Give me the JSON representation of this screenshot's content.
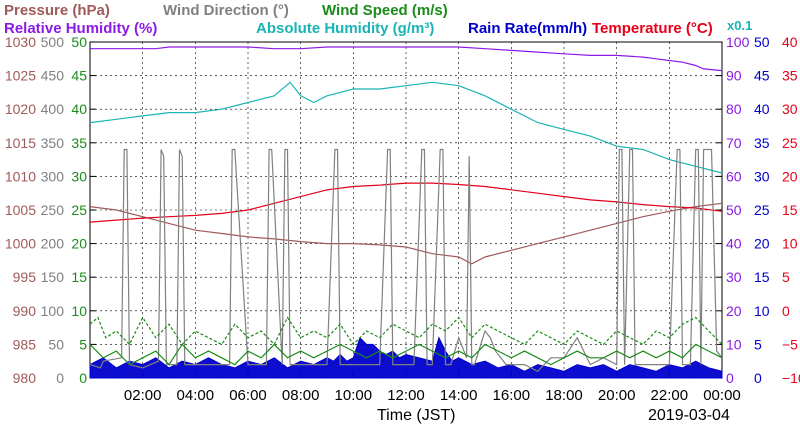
{
  "chart_data": {
    "type": "line",
    "date_label": "2019-03-04",
    "xlabel": "Time (JST)",
    "x_range_hours": [
      0,
      24
    ],
    "x_ticks": [
      "02:00",
      "04:00",
      "06:00",
      "08:00",
      "10:00",
      "12:00",
      "14:00",
      "16:00",
      "18:00",
      "20:00",
      "22:00",
      "00:00"
    ],
    "grid": true,
    "legend": {
      "row1": [
        {
          "label": "Pressure (hPa)",
          "color": "#a05a5a"
        },
        {
          "label": "Wind Direction (°)",
          "color": "#808080"
        },
        {
          "label": "Wind Speed (m/s)",
          "color": "#1a8c1a"
        }
      ],
      "row2": [
        {
          "label": "Relative Humidity (%)",
          "color": "#8c1ae6"
        },
        {
          "label": "Absolute Humidity (g/m³)",
          "color": "#1ab4b4"
        },
        {
          "label": "Rain Rate(mm/h)",
          "color": "#0000cc"
        },
        {
          "label": "Temperature (°C)",
          "color": "#e6001a"
        }
      ],
      "note": {
        "label": "x0.1",
        "color": "#1ab4b4"
      }
    },
    "axes": {
      "pressure": {
        "color": "#a05a5a",
        "min": 980,
        "max": 1030,
        "ticks": [
          "1030",
          "1025",
          "1020",
          "1015",
          "1010",
          "1005",
          "1000",
          "995",
          "990",
          "985",
          "980"
        ]
      },
      "wind_direction": {
        "color": "#808080",
        "min": 0,
        "max": 500,
        "ticks": [
          "500",
          "450",
          "400",
          "350",
          "300",
          "250",
          "200",
          "150",
          "100",
          "50",
          "0"
        ]
      },
      "wind_speed": {
        "color": "#1a8c1a",
        "min": 0,
        "max": 50,
        "ticks": [
          "50",
          "45",
          "40",
          "35",
          "30",
          "25",
          "20",
          "15",
          "10",
          "5",
          "0"
        ]
      },
      "humidity": {
        "color": "#8c1ae6",
        "min": 0,
        "max": 100,
        "ticks": [
          "100",
          "90",
          "80",
          "70",
          "60",
          "50",
          "40",
          "30",
          "20",
          "10",
          "0"
        ]
      },
      "rain_rate": {
        "color": "#0000cc",
        "min": 0,
        "max": 50,
        "ticks": [
          "50",
          "45",
          "40",
          "35",
          "30",
          "25",
          "20",
          "15",
          "10",
          "5",
          "0"
        ]
      },
      "temperature": {
        "color": "#e6001a",
        "min": -10,
        "max": 40,
        "ticks": [
          "40",
          "35",
          "30",
          "25",
          "20",
          "15",
          "10",
          "5",
          "0",
          "−5",
          "−10"
        ]
      }
    },
    "series": [
      {
        "name": "Relative Humidity (%)",
        "color": "#8c1ae6",
        "axis": "humidity",
        "x": [
          0,
          2,
          2.5,
          3,
          4,
          5,
          6,
          7,
          7.5,
          8,
          9,
          10,
          11,
          12,
          13,
          14,
          15,
          16,
          17,
          18,
          19,
          20,
          21,
          21.5,
          22,
          22.5,
          23,
          23.3,
          24
        ],
        "y": [
          98,
          98,
          98,
          98.5,
          98.5,
          98.5,
          98.5,
          98,
          98,
          98,
          98.5,
          98.5,
          98.5,
          98.5,
          98.5,
          98.5,
          98,
          97.5,
          97,
          96.5,
          96,
          96,
          95.5,
          95,
          94.5,
          94,
          93,
          92,
          91.5
        ]
      },
      {
        "name": "Absolute Humidity (g/m³)",
        "color": "#1ab4b4",
        "axis": "wind_speed",
        "x": [
          0,
          1,
          2,
          3,
          4,
          5,
          6,
          7,
          7.6,
          8,
          8.5,
          9,
          10,
          11,
          12,
          13,
          14,
          15,
          16,
          17,
          18,
          19,
          20,
          21,
          22,
          23,
          24
        ],
        "y": [
          38,
          38.5,
          39,
          39.5,
          39.5,
          40,
          41,
          42,
          44,
          42,
          41,
          42,
          43,
          43,
          43.5,
          44,
          43.5,
          42,
          40,
          38,
          37,
          36,
          34.5,
          34,
          32.5,
          31.5,
          30.5
        ]
      },
      {
        "name": "Pressure (hPa)",
        "color": "#a05a5a",
        "axis": "pressure",
        "x": [
          0,
          1,
          2,
          3,
          4,
          5,
          6,
          7,
          8,
          9,
          10,
          11,
          12,
          13,
          14,
          14.5,
          15,
          16,
          17,
          18,
          19,
          20,
          21,
          22,
          23,
          24
        ],
        "y": [
          1005.5,
          1005,
          1004,
          1003,
          1002,
          1001.5,
          1001,
          1000.7,
          1000.3,
          1000,
          1000,
          999.8,
          999.5,
          998.5,
          998,
          997,
          998,
          999,
          1000,
          1001,
          1002,
          1003,
          1004,
          1004.8,
          1005.5,
          1006
        ]
      },
      {
        "name": "Temperature (°C)",
        "color": "#e6001a",
        "axis": "temperature",
        "x": [
          0,
          1,
          2,
          3,
          4,
          5,
          6,
          7,
          8,
          9,
          10,
          11,
          12,
          13,
          14,
          15,
          16,
          17,
          18,
          19,
          20,
          21,
          22,
          23,
          24
        ],
        "y": [
          13.2,
          13.5,
          13.8,
          14,
          14.2,
          14.5,
          15,
          16,
          17,
          18,
          18.5,
          18.7,
          19,
          19,
          18.8,
          18.5,
          18,
          17.5,
          17,
          16.5,
          16.2,
          15.8,
          15.5,
          15.3,
          14.8
        ]
      },
      {
        "name": "Wind Direction (°)",
        "color": "#808080",
        "axis": "wind_direction",
        "x": [
          0,
          0.4,
          0.5,
          1.2,
          1.3,
          1.4,
          1.5,
          2,
          2.6,
          2.7,
          2.8,
          2.9,
          3.3,
          3.4,
          3.5,
          3.6,
          4.5,
          5.3,
          5.4,
          5.5,
          6,
          6.2,
          6.7,
          6.8,
          6.9,
          7.3,
          7.4,
          7.5,
          7.6,
          8,
          8.5,
          9,
          9.3,
          9.4,
          9.5,
          9.8,
          10.2,
          10.5,
          11,
          11.3,
          11.4,
          11.5,
          11.7,
          12,
          12.3,
          12.6,
          12.7,
          12.8,
          13,
          13.3,
          13.4,
          13.5,
          13.7,
          14,
          14.3,
          14.4,
          14.5,
          14.6,
          15,
          15.2,
          15.4,
          15.6,
          15.8,
          16.5,
          17,
          17.5,
          18,
          18.5,
          19,
          19.5,
          20,
          20.1,
          20.2,
          20.3,
          20.5,
          20.6,
          20.7,
          21,
          21.5,
          22,
          22.3,
          22.4,
          22.5,
          22.8,
          23,
          23.1,
          23.2,
          23.3,
          23.6,
          23.8,
          24
        ],
        "y": [
          20,
          15,
          25,
          30,
          340,
          340,
          20,
          15,
          25,
          340,
          330,
          20,
          20,
          340,
          330,
          20,
          20,
          20,
          340,
          340,
          20,
          20,
          20,
          340,
          340,
          20,
          340,
          340,
          20,
          20,
          20,
          20,
          340,
          340,
          20,
          20,
          20,
          20,
          20,
          340,
          340,
          20,
          20,
          20,
          20,
          340,
          340,
          20,
          20,
          340,
          340,
          20,
          20,
          60,
          30,
          330,
          20,
          20,
          70,
          60,
          40,
          30,
          20,
          20,
          10,
          30,
          30,
          60,
          20,
          30,
          20,
          340,
          340,
          20,
          340,
          340,
          20,
          20,
          20,
          20,
          340,
          340,
          20,
          20,
          340,
          340,
          20,
          340,
          340,
          40,
          30
        ]
      },
      {
        "name": "Wind Speed (m/s)",
        "color": "#1a8c1a",
        "axis": "wind_speed",
        "x": [
          0,
          0.5,
          1,
          1.5,
          2,
          2.5,
          3,
          3.5,
          4,
          4.5,
          5,
          5.5,
          6,
          6.5,
          7,
          7.5,
          8,
          8.5,
          9,
          9.5,
          10,
          10.5,
          11,
          11.5,
          12,
          12.5,
          13,
          13.5,
          14,
          14.5,
          15,
          15.5,
          16,
          16.5,
          17,
          17.5,
          18,
          18.5,
          19,
          19.5,
          20,
          20.5,
          21,
          21.5,
          22,
          22.5,
          23,
          23.5,
          24
        ],
        "y": [
          5,
          3,
          4,
          2,
          3,
          4,
          2,
          5,
          3,
          4,
          3,
          2,
          4,
          3,
          5,
          3,
          4,
          3,
          4,
          5,
          4,
          3,
          4,
          3,
          4,
          5,
          4,
          3,
          4,
          3,
          5,
          4,
          3,
          4,
          3,
          2,
          3,
          4,
          3,
          3,
          4,
          3,
          4,
          3,
          4,
          3,
          5,
          4,
          3
        ]
      },
      {
        "name": "Wind Speed (m/s)",
        "color": "#1a8c1a",
        "axis": "wind_speed",
        "dashed": true,
        "x": [
          0,
          0.3,
          0.6,
          1,
          1.5,
          2,
          2.5,
          3,
          3.5,
          4,
          4.5,
          5,
          5.5,
          6,
          6.5,
          7,
          7.5,
          8,
          8.5,
          9,
          9.5,
          10,
          10.5,
          11,
          11.5,
          12,
          12.5,
          13,
          13.5,
          14,
          14.5,
          15,
          15.5,
          16,
          16.5,
          17,
          17.5,
          18,
          18.5,
          19,
          19.5,
          20,
          20.5,
          21,
          21.5,
          22,
          22.5,
          23,
          23.5,
          24
        ],
        "y": [
          8,
          9,
          6,
          7,
          5,
          9,
          6,
          8,
          5,
          7,
          6,
          5,
          8,
          6,
          7,
          5,
          9,
          6,
          7,
          6,
          8,
          5,
          7,
          6,
          8,
          7,
          6,
          8,
          7,
          9,
          6,
          8,
          7,
          6,
          5,
          7,
          6,
          5,
          7,
          6,
          5,
          7,
          6,
          5,
          7,
          6,
          8,
          9,
          7,
          5
        ]
      }
    ],
    "rain_rate": {
      "name": "Rain Rate(mm/h)",
      "color": "#0000cc",
      "axis": "rain_rate",
      "x": [
        0,
        0.5,
        1,
        1.5,
        2,
        2.5,
        3,
        3.5,
        4,
        4.5,
        5,
        5.5,
        6,
        6.5,
        7,
        7.5,
        8,
        8.5,
        9,
        9.25,
        9.5,
        9.75,
        10,
        10.25,
        10.5,
        10.75,
        11,
        11.25,
        11.5,
        11.75,
        12,
        12.5,
        13,
        13.25,
        13.5,
        13.75,
        14,
        14.5,
        15,
        15.5,
        16,
        16.5,
        17,
        17.5,
        18,
        18.5,
        19,
        19.5,
        20,
        20.5,
        21,
        21.5,
        22,
        22.5,
        23,
        23.5,
        24
      ],
      "y": [
        2,
        3,
        1.5,
        2.5,
        2,
        3,
        1.5,
        2.5,
        2,
        3,
        2,
        1.5,
        2.5,
        2,
        3,
        1.5,
        2.5,
        2,
        3,
        2.5,
        3.5,
        2.5,
        3,
        6,
        5,
        5,
        4,
        3.5,
        4,
        3,
        3.5,
        3,
        2.5,
        6,
        4,
        2.5,
        3,
        2,
        2.5,
        1.5,
        2,
        1,
        2,
        1.5,
        1,
        2,
        1.5,
        2,
        1,
        2,
        1.5,
        1,
        2,
        1.5,
        2.5,
        1.5,
        1
      ]
    }
  }
}
